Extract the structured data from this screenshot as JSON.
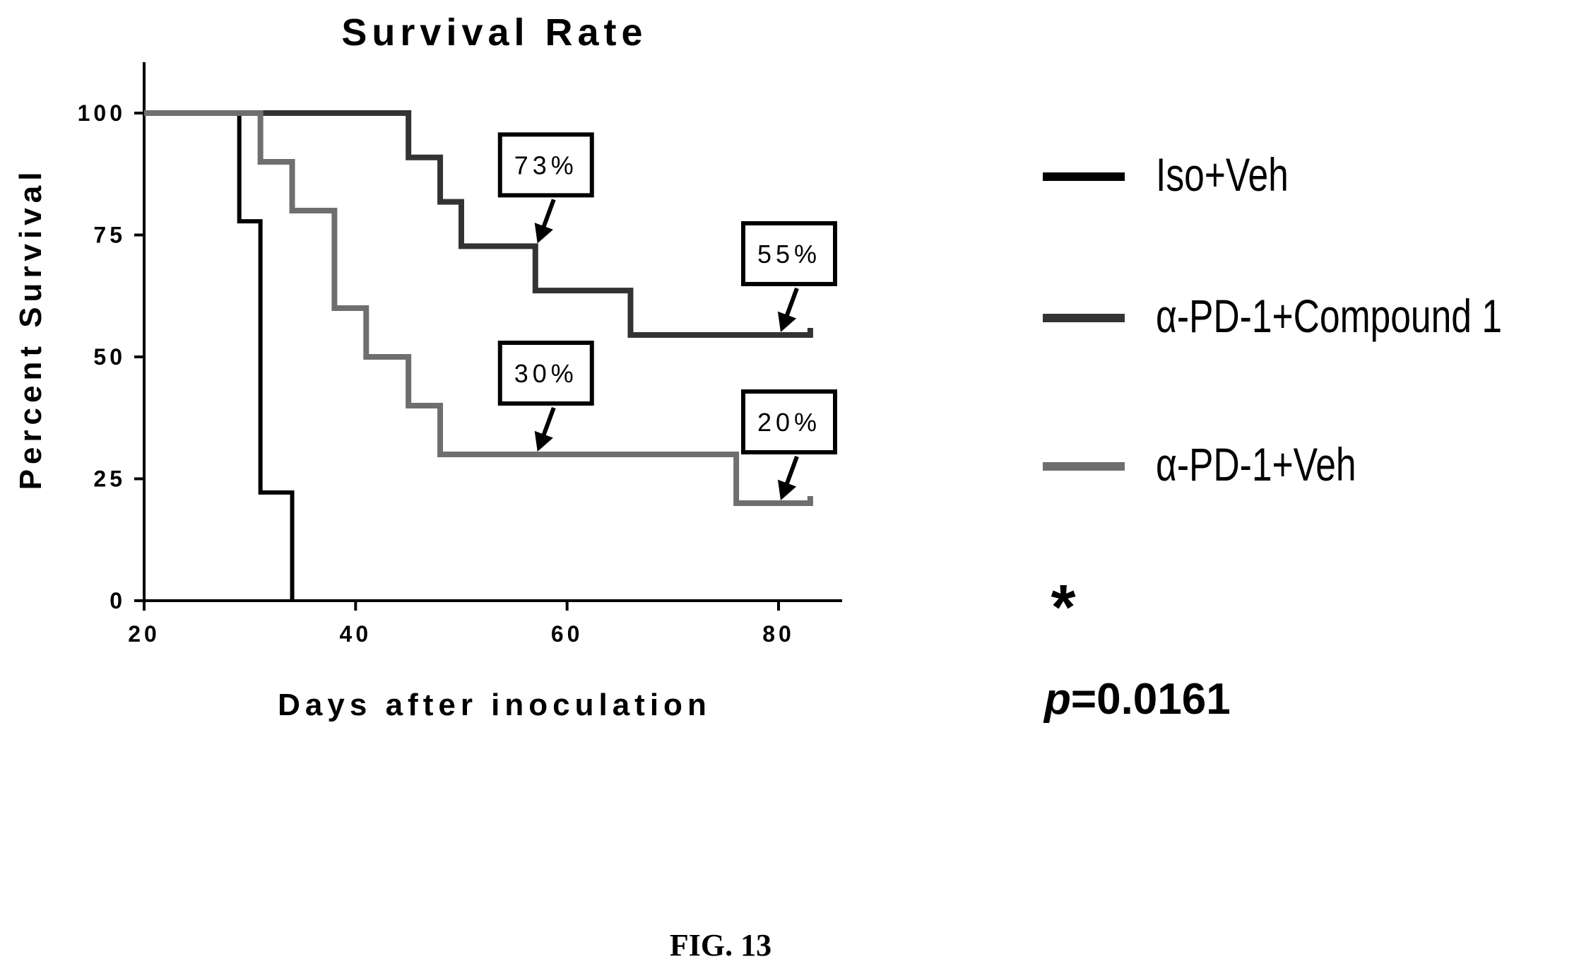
{
  "chart_data": {
    "type": "line",
    "step": true,
    "title": "Survival Rate",
    "xlabel": "Days after inoculation",
    "ylabel": "Percent Survival",
    "xlim": [
      20,
      84
    ],
    "ylim": [
      0,
      110
    ],
    "xticks": [
      20,
      40,
      60,
      80
    ],
    "yticks": [
      0,
      25,
      50,
      75,
      100
    ],
    "grid": false,
    "legend_position": "right",
    "series": [
      {
        "name": "Iso+Veh",
        "color": "#000000",
        "x": [
          20,
          29,
          31,
          34
        ],
        "y": [
          100,
          77.8,
          22.2,
          0
        ]
      },
      {
        "name": "α-PD-1+Compound 1",
        "color": "#333333",
        "x": [
          20,
          45,
          48,
          50,
          57,
          66,
          83
        ],
        "y": [
          100,
          90.9,
          81.8,
          72.7,
          63.6,
          54.5,
          54.5
        ]
      },
      {
        "name": "α-PD-1+Veh",
        "color": "#6e6e6e",
        "x": [
          20,
          31,
          34,
          38,
          41,
          45,
          48,
          76,
          83
        ],
        "y": [
          100,
          90,
          80,
          60,
          50,
          40,
          30,
          20,
          20
        ]
      }
    ],
    "annotations": [
      {
        "text": "73%",
        "x": 57,
        "y": 72.7
      },
      {
        "text": "55%",
        "x": 80,
        "y": 54.5
      },
      {
        "text": "30%",
        "x": 57,
        "y": 30
      },
      {
        "text": "20%",
        "x": 80,
        "y": 20
      }
    ],
    "significance": {
      "marker": "*",
      "p_label": "p",
      "p_value": "=0.0161"
    }
  },
  "figure_label": "FIG. 13"
}
